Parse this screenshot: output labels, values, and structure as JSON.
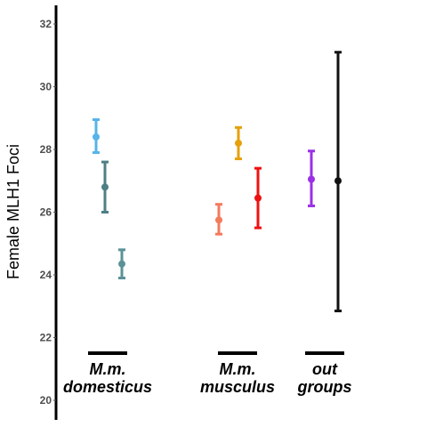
{
  "chart_data": {
    "type": "scatter",
    "ylabel": "Female MLH1 Foci",
    "ylim": [
      20,
      32
    ],
    "yticks": [
      20,
      22,
      24,
      26,
      28,
      30,
      32
    ],
    "grid": false,
    "groups": [
      {
        "label_line1": "M.m.",
        "label_line2": "domesticus"
      },
      {
        "label_line1": "M.m.",
        "label_line2": "musculus"
      },
      {
        "label_line1": "out",
        "label_line2": "groups"
      }
    ],
    "points": [
      {
        "group": 0,
        "value": 28.4,
        "lower": 27.9,
        "upper": 28.95,
        "color": "#56b4e9"
      },
      {
        "group": 0,
        "value": 26.8,
        "lower": 26.0,
        "upper": 27.6,
        "color": "#4e7f84"
      },
      {
        "group": 0,
        "value": 24.35,
        "lower": 23.9,
        "upper": 24.8,
        "color": "#5b9297"
      },
      {
        "group": 1,
        "value": 25.75,
        "lower": 25.3,
        "upper": 26.25,
        "color": "#f47a5c"
      },
      {
        "group": 1,
        "value": 28.2,
        "lower": 27.7,
        "upper": 28.7,
        "color": "#e6a00a"
      },
      {
        "group": 1,
        "value": 26.45,
        "lower": 25.5,
        "upper": 27.4,
        "color": "#ee1111"
      },
      {
        "group": 2,
        "value": 27.05,
        "lower": 26.2,
        "upper": 27.95,
        "color": "#9b30e6"
      },
      {
        "group": 2,
        "value": 27.0,
        "lower": 22.85,
        "upper": 31.1,
        "color": "#111111"
      }
    ]
  }
}
